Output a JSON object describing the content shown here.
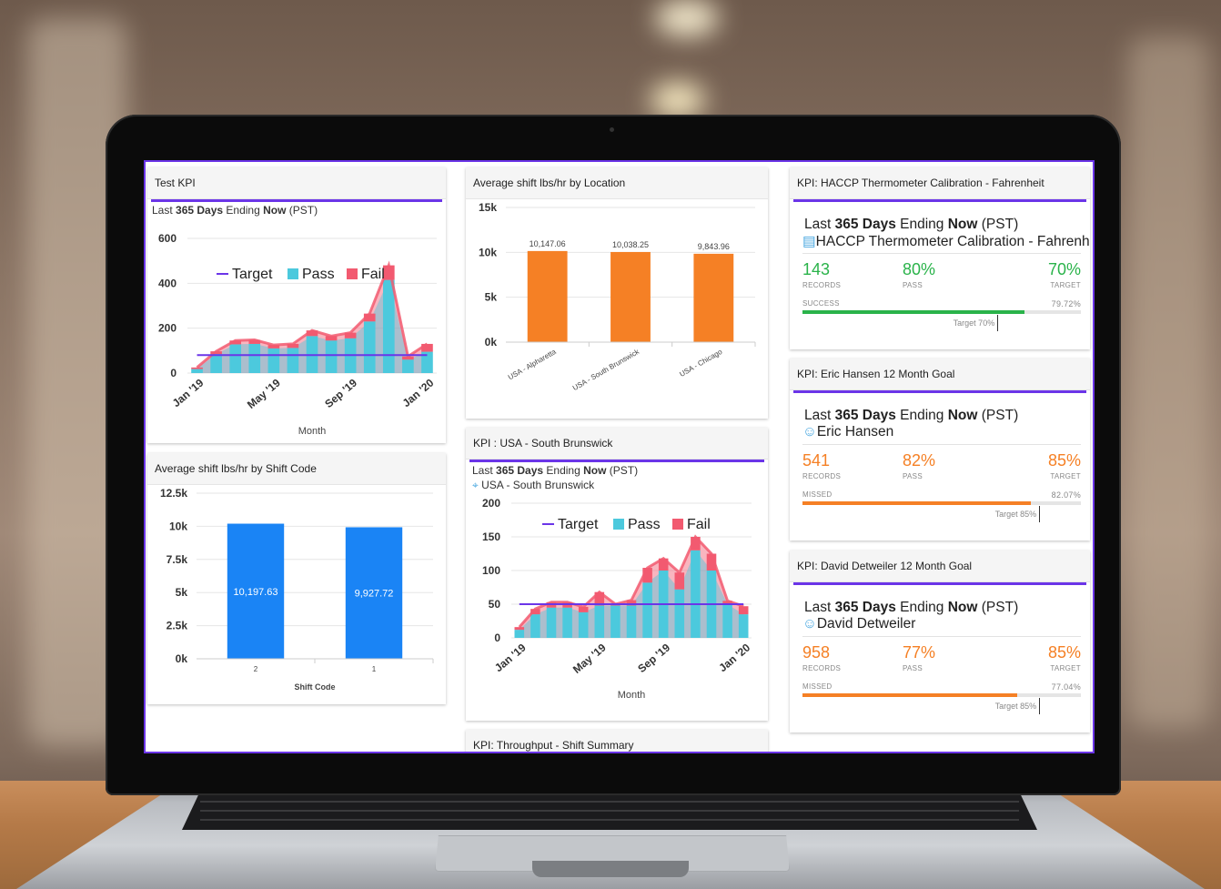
{
  "colors": {
    "accent": "#6b35e8",
    "pass": "#4cc9dd",
    "fail": "#f25a70",
    "target": "#6b35e8",
    "orange": "#f58025",
    "blue": "#1a84f5",
    "green": "#2ab34a"
  },
  "test_kpi": {
    "title": "Test KPI",
    "period_prefix": "Last ",
    "period_days": "365 Days",
    "period_mid": " Ending ",
    "period_now": "Now",
    "period_suffix": " (PST)",
    "xlabel": "Month"
  },
  "location_card": {
    "title": "Average shift lbs/hr by Location"
  },
  "shift_card": {
    "title": "Average shift lbs/hr by Shift Code",
    "xlabel": "Shift Code"
  },
  "south_brunswick": {
    "title": "KPI : USA - South Brunswick",
    "period_prefix": "Last ",
    "period_days": "365 Days",
    "period_mid": " Ending ",
    "period_now": "Now",
    "period_suffix": " (PST)",
    "location": "USA - South Brunswick",
    "xlabel": "Month"
  },
  "throughput": {
    "title": "KPI: Throughput - Shift Summary"
  },
  "haccp": {
    "title": "KPI: HACCP Thermometer Calibration - Fahrenheit",
    "period_prefix": "Last ",
    "period_days": "365 Days",
    "period_mid": " Ending ",
    "period_now": "Now",
    "period_suffix": " (PST)",
    "subject": "HACCP Thermometer Calibration - Fahrenheit",
    "records": "143",
    "records_label": "RECORDS",
    "pass": "80%",
    "pass_label": "PASS",
    "target": "70%",
    "target_label": "TARGET",
    "status": "SUCCESS",
    "status_value": "79.72%",
    "target_marker": "Target 70%",
    "progress": 0.7972,
    "target_fraction": 0.7,
    "color": "#2ab34a"
  },
  "eric": {
    "title": "KPI: Eric Hansen 12 Month Goal",
    "period_prefix": "Last ",
    "period_days": "365 Days",
    "period_mid": " Ending ",
    "period_now": "Now",
    "period_suffix": " (PST)",
    "subject": "Eric Hansen",
    "records": "541",
    "records_label": "RECORDS",
    "pass": "82%",
    "pass_label": "PASS",
    "target": "85%",
    "target_label": "TARGET",
    "status": "MISSED",
    "status_value": "82.07%",
    "target_marker": "Target 85%",
    "progress": 0.8207,
    "target_fraction": 0.85,
    "color": "#f58025"
  },
  "david": {
    "title": "KPI: David Detweiler 12 Month Goal",
    "period_prefix": "Last ",
    "period_days": "365 Days",
    "period_mid": " Ending ",
    "period_now": "Now",
    "period_suffix": " (PST)",
    "subject": "David Detweiler",
    "records": "958",
    "records_label": "RECORDS",
    "pass": "77%",
    "pass_label": "PASS",
    "target": "85%",
    "target_label": "TARGET",
    "status": "MISSED",
    "status_value": "77.04%",
    "target_marker": "Target 85%",
    "progress": 0.7704,
    "target_fraction": 0.85,
    "color": "#f58025"
  },
  "chart_data": [
    {
      "type": "bar",
      "title": "Test KPI",
      "xlabel": "Month",
      "ylabel": "",
      "ylim": [
        0,
        600
      ],
      "yticks": [
        0,
        200,
        400,
        600
      ],
      "x_tick_labels": [
        "Jan '19",
        "May '19",
        "Sep '19",
        "Jan '20"
      ],
      "legend": [
        "Target",
        "Pass",
        "Fail"
      ],
      "legend_position": "top",
      "series": [
        {
          "name": "Pass",
          "values": [
            18,
            85,
            128,
            130,
            110,
            112,
            165,
            145,
            155,
            230,
            415,
            60,
            95
          ]
        },
        {
          "name": "Fail",
          "values": [
            7,
            12,
            17,
            18,
            15,
            18,
            25,
            20,
            25,
            35,
            65,
            14,
            35
          ]
        },
        {
          "name": "Target",
          "values": [
            80,
            80,
            80,
            80,
            80,
            80,
            80,
            80,
            80,
            80,
            80,
            80,
            80
          ]
        }
      ]
    },
    {
      "type": "bar",
      "title": "Average shift lbs/hr by Location",
      "ylim": [
        0,
        15000
      ],
      "yticks": [
        "0k",
        "5k",
        "10k",
        "15k"
      ],
      "categories": [
        "USA - Alpharetta",
        "USA - South Brunswick",
        "USA - Chicago"
      ],
      "values": [
        10147.06,
        10038.25,
        9843.96
      ],
      "data_labels": [
        "10,147.06",
        "10,038.25",
        "9,843.96"
      ],
      "color": "#f58025"
    },
    {
      "type": "bar",
      "title": "Average shift lbs/hr by Shift Code",
      "xlabel": "Shift Code",
      "ylim": [
        0,
        12500
      ],
      "yticks": [
        "0k",
        "2.5k",
        "5k",
        "7.5k",
        "10k",
        "12.5k"
      ],
      "categories": [
        "2",
        "1"
      ],
      "values": [
        10197.63,
        9927.72
      ],
      "data_labels": [
        "10,197.63",
        "9,927.72"
      ],
      "color": "#1a84f5"
    },
    {
      "type": "bar",
      "title": "KPI : USA - South Brunswick",
      "xlabel": "Month",
      "ylim": [
        0,
        200
      ],
      "yticks": [
        0,
        50,
        100,
        150,
        200
      ],
      "x_tick_labels": [
        "Jan '19",
        "May '19",
        "Sep '19",
        "Jan '20"
      ],
      "legend": [
        "Target",
        "Pass",
        "Fail"
      ],
      "legend_position": "top",
      "series": [
        {
          "name": "Pass",
          "values": [
            12,
            35,
            45,
            45,
            38,
            48,
            48,
            48,
            82,
            100,
            72,
            130,
            100,
            50,
            35
          ]
        },
        {
          "name": "Fail",
          "values": [
            4,
            8,
            8,
            8,
            8,
            20,
            2,
            8,
            22,
            18,
            25,
            20,
            25,
            5,
            12
          ]
        },
        {
          "name": "Target",
          "values": [
            50,
            50,
            50,
            50,
            50,
            50,
            50,
            50,
            50,
            50,
            50,
            50,
            50,
            50,
            50
          ]
        }
      ]
    }
  ]
}
